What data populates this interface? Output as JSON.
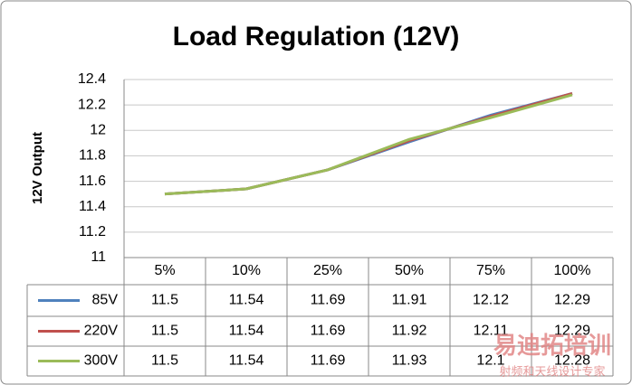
{
  "chart_data": {
    "type": "line",
    "title": "Load Regulation (12V)",
    "y_label": "12V Output",
    "categories": [
      "5%",
      "10%",
      "25%",
      "50%",
      "75%",
      "100%"
    ],
    "series": [
      {
        "name": "85V",
        "color": "#4f81bd",
        "values": [
          11.5,
          11.54,
          11.69,
          11.91,
          12.12,
          12.29
        ]
      },
      {
        "name": "220V",
        "color": "#c0504d",
        "values": [
          11.5,
          11.54,
          11.69,
          11.92,
          12.11,
          12.29
        ]
      },
      {
        "name": "300V",
        "color": "#9bbb59",
        "values": [
          11.5,
          11.54,
          11.69,
          11.93,
          12.1,
          12.28
        ]
      }
    ],
    "ylim": [
      11,
      12.4
    ],
    "yticks": [
      11,
      11.2,
      11.4,
      11.6,
      11.8,
      12,
      12.2,
      12.4
    ],
    "grid": true,
    "data_table": true,
    "watermark": {
      "brand": "易迪拓培训",
      "tagline": "射频和天线设计专家"
    }
  }
}
